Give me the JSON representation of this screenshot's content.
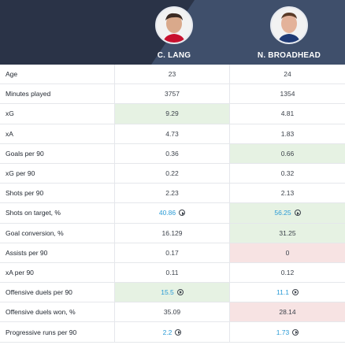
{
  "players": [
    {
      "name": "C. LANG"
    },
    {
      "name": "N. BROADHEAD"
    }
  ],
  "rows": [
    {
      "label": "Age",
      "v1": "23",
      "v2": "24",
      "h1": "",
      "h2": "",
      "l1": false,
      "l2": false
    },
    {
      "label": "Minutes played",
      "v1": "3757",
      "v2": "1354",
      "h1": "",
      "h2": "",
      "l1": false,
      "l2": false
    },
    {
      "label": "xG",
      "v1": "9.29",
      "v2": "4.81",
      "h1": "green",
      "h2": "",
      "l1": false,
      "l2": false
    },
    {
      "label": "xA",
      "v1": "4.73",
      "v2": "1.83",
      "h1": "",
      "h2": "",
      "l1": false,
      "l2": false
    },
    {
      "label": "Goals per 90",
      "v1": "0.36",
      "v2": "0.66",
      "h1": "",
      "h2": "green",
      "l1": false,
      "l2": false
    },
    {
      "label": "xG per 90",
      "v1": "0.22",
      "v2": "0.32",
      "h1": "",
      "h2": "",
      "l1": false,
      "l2": false
    },
    {
      "label": "Shots per 90",
      "v1": "2.23",
      "v2": "2.13",
      "h1": "",
      "h2": "",
      "l1": false,
      "l2": false
    },
    {
      "label": "Shots on target, %",
      "v1": "40.86",
      "v2": "56.25",
      "h1": "",
      "h2": "green",
      "l1": true,
      "l2": true
    },
    {
      "label": "Goal conversion, %",
      "v1": "16.129",
      "v2": "31.25",
      "h1": "",
      "h2": "green",
      "l1": false,
      "l2": false
    },
    {
      "label": "Assists per 90",
      "v1": "0.17",
      "v2": "0",
      "h1": "",
      "h2": "red",
      "l1": false,
      "l2": false
    },
    {
      "label": "xA per 90",
      "v1": "0.11",
      "v2": "0.12",
      "h1": "",
      "h2": "",
      "l1": false,
      "l2": false
    },
    {
      "label": "Offensive duels per 90",
      "v1": "15.5",
      "v2": "11.1",
      "h1": "green",
      "h2": "",
      "l1": true,
      "l2": true
    },
    {
      "label": "Offensive duels won, %",
      "v1": "35.09",
      "v2": "28.14",
      "h1": "",
      "h2": "red",
      "l1": false,
      "l2": false
    },
    {
      "label": "Progressive runs per 90",
      "v1": "2.2",
      "v2": "1.73",
      "h1": "",
      "h2": "",
      "l1": true,
      "l2": true
    }
  ]
}
